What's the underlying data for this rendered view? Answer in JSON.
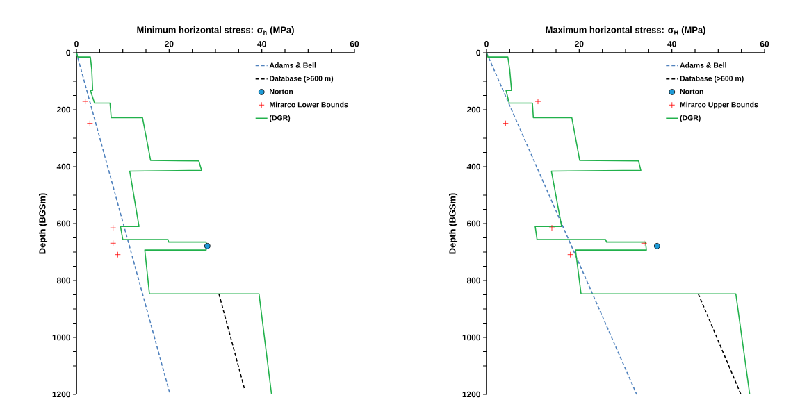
{
  "chart_data": [
    {
      "type": "line",
      "xlabel": "Minimum horizontal stress: σ$_{h}$ (MPa)",
      "ylabel": "Depth (BGSm)",
      "xlim": [
        0,
        60
      ],
      "xticks": [
        0,
        20,
        40,
        60
      ],
      "ylim": [
        1200,
        0
      ],
      "yticks": [
        0,
        200,
        400,
        600,
        800,
        1000,
        1200
      ],
      "legend": "top right",
      "series": [
        {
          "name": "Adams & Bell",
          "line_style": "dashed",
          "color": "#4f81bd",
          "x": [
            0,
            20.2
          ],
          "values": [
            0,
            1200
          ]
        },
        {
          "name": "Database (>600 m)",
          "line_style": "dashed",
          "color": "#000000",
          "x": [
            30.75,
            36.25
          ],
          "values": [
            847,
            1180
          ]
        },
        {
          "name": "Norton",
          "type": "scatter",
          "marker": "circle",
          "color": "#1e9bd7",
          "x": [
            28.25
          ],
          "values": [
            679
          ]
        },
        {
          "name": "Mirarco Lower Bounds",
          "type": "scatter",
          "marker": "cross",
          "color": "#ff0000",
          "x": [
            1.9,
            2.9,
            7.9,
            7.9,
            8.9
          ],
          "values": [
            171,
            248,
            615,
            669,
            709
          ]
        },
        {
          "name": "(DGR)",
          "line_style": "solid",
          "color": "#22b14c",
          "x": [
            0,
            0.3,
            3.0,
            3.3,
            3.5,
            3.0,
            3.9,
            7.25,
            7.5,
            14.25,
            16.0,
            26.4,
            27.0,
            11.5,
            13.5,
            9.5,
            10.0,
            19.75,
            19.9,
            28.0,
            28.0,
            14.75,
            15.75,
            39.4,
            42.1
          ],
          "values": [
            0,
            15,
            15,
            59,
            132,
            132,
            177,
            177,
            228,
            228,
            378,
            380,
            413,
            416,
            610,
            610,
            656,
            656,
            665,
            665,
            693,
            693,
            847,
            847,
            1200
          ]
        }
      ]
    },
    {
      "type": "line",
      "xlabel": "Maximum horizontal stress: σ$_{H}$ (MPa)",
      "ylabel": "Depth (BGSm)",
      "xlim": [
        0,
        60
      ],
      "xticks": [
        0,
        20,
        40,
        60
      ],
      "ylim": [
        1200,
        0
      ],
      "yticks": [
        0,
        200,
        400,
        600,
        800,
        1000,
        1200
      ],
      "legend": "top right",
      "series": [
        {
          "name": "Adams & Bell",
          "line_style": "dashed",
          "color": "#4f81bd",
          "x": [
            0,
            32.4
          ],
          "values": [
            0,
            1200
          ]
        },
        {
          "name": "Database (>600 m)",
          "line_style": "dashed",
          "color": "#000000",
          "x": [
            45.7,
            54.9
          ],
          "values": [
            847,
            1200
          ]
        },
        {
          "name": "Norton",
          "type": "scatter",
          "marker": "circle",
          "color": "#1e9bd7",
          "x": [
            36.8
          ],
          "values": [
            679
          ]
        },
        {
          "name": "Mirarco Upper Bounds",
          "type": "scatter",
          "marker": "cross",
          "color": "#ff0000",
          "x": [
            11.1,
            4.1,
            14.1,
            34.0,
            18.1
          ],
          "values": [
            171,
            248,
            615,
            669,
            709
          ]
        },
        {
          "name": "(DGR)",
          "line_style": "solid",
          "color": "#22b14c",
          "x": [
            0,
            0.3,
            4.6,
            5.0,
            5.4,
            4.2,
            4.9,
            9.9,
            10.1,
            18.4,
            20.1,
            32.8,
            33.3,
            14.0,
            16.2,
            10.5,
            10.9,
            25.7,
            25.9,
            34.3,
            34.5,
            19.2,
            20.4,
            53.8,
            56.8
          ],
          "values": [
            0,
            15,
            15,
            59,
            132,
            132,
            177,
            177,
            228,
            228,
            378,
            380,
            413,
            416,
            610,
            610,
            656,
            656,
            665,
            665,
            693,
            693,
            847,
            847,
            1200
          ]
        }
      ]
    }
  ]
}
